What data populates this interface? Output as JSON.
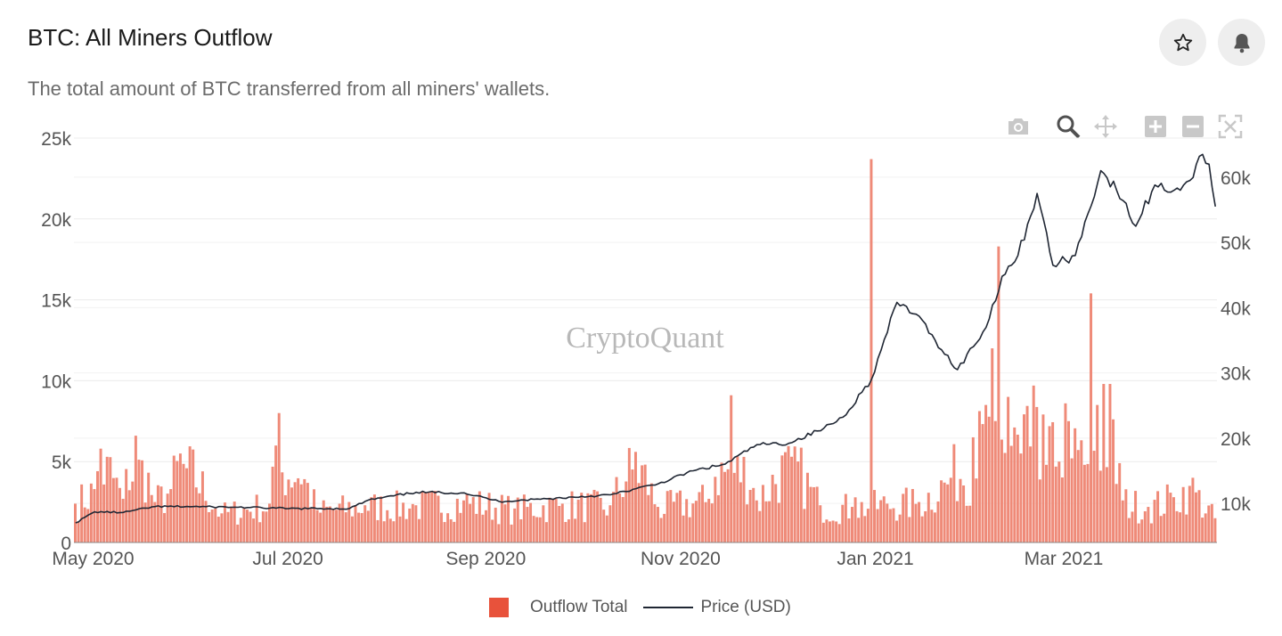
{
  "header": {
    "title": "BTC: All Miners Outflow",
    "subtitle": "The total amount of BTC transferred from all miners' wallets.",
    "favorite_icon": "star-icon",
    "alert_icon": "bell-icon"
  },
  "toolbar": {
    "icons": [
      "camera-icon",
      "zoom-icon",
      "pan-icon",
      "zoom-in-icon",
      "zoom-out-icon",
      "reset-axes-icon"
    ]
  },
  "watermark": "CryptoQuant",
  "legend": {
    "bars_label": "Outflow Total",
    "line_label": "Price (USD)"
  },
  "colors": {
    "bar": "#ef8a78",
    "bar_legend": "#e8523b",
    "line": "#1f2633",
    "grid": "#ececec"
  },
  "chart_data": {
    "type": "bar",
    "x_start": "2020-04-25",
    "x_end": "2021-04-18",
    "x_ticks": [
      "May 2020",
      "Jul 2020",
      "Sep 2020",
      "Nov 2020",
      "Jan 2021",
      "Mar 2021"
    ],
    "y_left": {
      "ticks": [
        "0",
        "5k",
        "10k",
        "15k",
        "20k",
        "25k"
      ],
      "range": [
        0,
        25000
      ]
    },
    "y_right": {
      "ticks": [
        "10k",
        "20k",
        "30k",
        "40k",
        "50k",
        "60k"
      ],
      "range": [
        4000,
        66000
      ]
    },
    "grid": true,
    "legend_position": "bottom-center",
    "series": [
      {
        "name": "Outflow Total",
        "type": "bar",
        "axis": "left",
        "points": [
          [
            "2020-04-25",
            2400
          ],
          [
            "2020-05-01",
            3300
          ],
          [
            "2020-05-03",
            5800
          ],
          [
            "2020-05-10",
            2700
          ],
          [
            "2020-05-14",
            6600
          ],
          [
            "2020-05-20",
            2500
          ],
          [
            "2020-05-25",
            3300
          ],
          [
            "2020-05-28",
            5500
          ],
          [
            "2020-06-10",
            1800
          ],
          [
            "2020-06-25",
            2400
          ],
          [
            "2020-06-28",
            8000
          ],
          [
            "2020-07-10",
            2000
          ],
          [
            "2020-07-25",
            2300
          ],
          [
            "2020-08-10",
            2300
          ],
          [
            "2020-08-25",
            2600
          ],
          [
            "2020-09-10",
            2100
          ],
          [
            "2020-09-25",
            2400
          ],
          [
            "2020-10-10",
            2300
          ],
          [
            "2020-10-18",
            5600
          ],
          [
            "2020-10-25",
            2200
          ],
          [
            "2020-11-10",
            2700
          ],
          [
            "2020-11-17",
            9100
          ],
          [
            "2020-11-25",
            2600
          ],
          [
            "2020-12-06",
            5300
          ],
          [
            "2020-12-15",
            2300
          ],
          [
            "2020-12-25",
            2200
          ],
          [
            "2020-12-31",
            23700
          ],
          [
            "2021-01-05",
            2400
          ],
          [
            "2021-01-15",
            2500
          ],
          [
            "2021-01-25",
            4000
          ],
          [
            "2021-02-01",
            6500
          ],
          [
            "2021-02-05",
            8500
          ],
          [
            "2021-02-07",
            12000
          ],
          [
            "2021-02-09",
            18300
          ],
          [
            "2021-02-12",
            9000
          ],
          [
            "2021-02-16",
            5500
          ],
          [
            "2021-02-20",
            9700
          ],
          [
            "2021-02-24",
            4800
          ],
          [
            "2021-02-28",
            5000
          ],
          [
            "2021-03-02",
            8600
          ],
          [
            "2021-03-04",
            5200
          ],
          [
            "2021-03-08",
            4800
          ],
          [
            "2021-03-10",
            15400
          ],
          [
            "2021-03-12",
            8500
          ],
          [
            "2021-03-14",
            9800
          ],
          [
            "2021-03-16",
            9800
          ],
          [
            "2021-03-20",
            2600
          ],
          [
            "2021-03-28",
            2200
          ],
          [
            "2021-04-05",
            2800
          ],
          [
            "2021-04-10",
            3500
          ],
          [
            "2021-04-18",
            1500
          ]
        ]
      },
      {
        "name": "Price (USD)",
        "type": "line",
        "axis": "right",
        "points": [
          [
            "2020-04-25",
            7000
          ],
          [
            "2020-05-01",
            8700
          ],
          [
            "2020-05-10",
            8600
          ],
          [
            "2020-05-20",
            9500
          ],
          [
            "2020-06-01",
            9500
          ],
          [
            "2020-06-15",
            9400
          ],
          [
            "2020-07-01",
            9200
          ],
          [
            "2020-07-20",
            9200
          ],
          [
            "2020-07-26",
            10500
          ],
          [
            "2020-08-10",
            11700
          ],
          [
            "2020-08-25",
            11600
          ],
          [
            "2020-09-05",
            10300
          ],
          [
            "2020-09-20",
            10700
          ],
          [
            "2020-10-10",
            11300
          ],
          [
            "2020-10-25",
            13000
          ],
          [
            "2020-11-05",
            15000
          ],
          [
            "2020-11-15",
            16000
          ],
          [
            "2020-11-25",
            19000
          ],
          [
            "2020-12-05",
            19200
          ],
          [
            "2020-12-16",
            21500
          ],
          [
            "2020-12-22",
            23200
          ],
          [
            "2020-12-31",
            29000
          ],
          [
            "2021-01-08",
            40800
          ],
          [
            "2021-01-14",
            39000
          ],
          [
            "2021-01-20",
            35000
          ],
          [
            "2021-01-27",
            30500
          ],
          [
            "2021-02-05",
            37000
          ],
          [
            "2021-02-10",
            44800
          ],
          [
            "2021-02-15",
            48000
          ],
          [
            "2021-02-21",
            57500
          ],
          [
            "2021-02-26",
            46500
          ],
          [
            "2021-03-05",
            48000
          ],
          [
            "2021-03-13",
            61000
          ],
          [
            "2021-03-18",
            58000
          ],
          [
            "2021-03-24",
            52500
          ],
          [
            "2021-03-30",
            58800
          ],
          [
            "2021-04-05",
            58000
          ],
          [
            "2021-04-10",
            59500
          ],
          [
            "2021-04-14",
            63500
          ],
          [
            "2021-04-16",
            62000
          ],
          [
            "2021-04-18",
            55500
          ]
        ]
      }
    ]
  }
}
